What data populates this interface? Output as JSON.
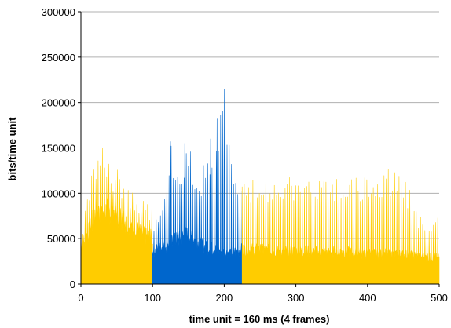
{
  "chart_data": {
    "type": "area",
    "title": "",
    "xlabel": "time unit = 160 ms (4  frames)",
    "ylabel": "bits/time unit",
    "xlim": [
      0,
      500
    ],
    "ylim": [
      0,
      300000
    ],
    "x_ticks": [
      "0",
      "100",
      "200",
      "300",
      "400",
      "500"
    ],
    "y_ticks": [
      "0",
      "50000",
      "100000",
      "150000",
      "200000",
      "250000",
      "300000"
    ],
    "grid": "horizontal",
    "legend": "none",
    "series": [
      {
        "color": "#ffcc00",
        "x_range": [
          0,
          100
        ],
        "baseline": [
          40000,
          55000,
          75000,
          80000,
          80000,
          78000,
          70000,
          62000,
          58000,
          52000,
          50000
        ],
        "peaks": [
          55000,
          110000,
          150000,
          152000,
          140000,
          130000,
          120000,
          110000,
          100000,
          95000,
          90000
        ]
      },
      {
        "color": "#0066cc",
        "x_range": [
          100,
          225
        ],
        "baseline": [
          35000,
          40000,
          45000,
          50000,
          55000,
          45000,
          40000,
          38000,
          35000,
          35000,
          38000
        ],
        "peaks": [
          60000,
          100000,
          157000,
          120000,
          155000,
          120000,
          140000,
          160000,
          215000,
          120000,
          110000
        ],
        "spikes": [
          [
            125,
            157000
          ],
          [
            145,
            155000
          ],
          [
            181,
            160000
          ],
          [
            190,
            182000
          ],
          [
            200,
            215000
          ]
        ]
      },
      {
        "color": "#ffcc00",
        "x_range": [
          225,
          500
        ],
        "baseline": [
          38000,
          37000,
          36000,
          36000,
          35000,
          35000,
          34000,
          33000,
          32000,
          30000,
          28000
        ],
        "peaks": [
          118000,
          118000,
          118000,
          118000,
          117000,
          117000,
          118000,
          120000,
          135000,
          75000,
          73000
        ]
      }
    ]
  }
}
